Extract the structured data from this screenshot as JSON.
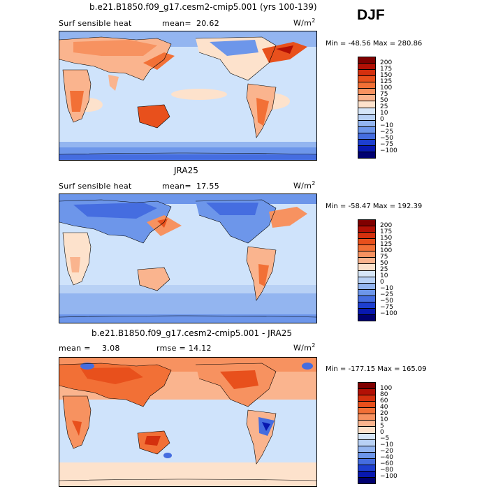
{
  "season": "DJF",
  "panels": [
    {
      "title": "b.e21.B1850.f09_g17.cesm2-cmip5.001 (yrs 100-139)",
      "left_label": "Surf sensible heat",
      "stat_label": "mean=",
      "stat_value": "20.62",
      "units_base": "W/m",
      "units_exp": "2",
      "minmax": "Min = -48.56 Max = 280.86",
      "colorbar": {
        "labels": [
          "200",
          "175",
          "150",
          "125",
          "100",
          "75",
          "50",
          "25",
          "10",
          "0",
          "−10",
          "−25",
          "−50",
          "−75",
          "−100"
        ],
        "colors": [
          "#7f0000",
          "#b21005",
          "#d4300e",
          "#e8501c",
          "#f27036",
          "#f79260",
          "#fab48e",
          "#fde2cc",
          "#d6e6f8",
          "#b8d1f5",
          "#93b5f0",
          "#6d96ea",
          "#456de0",
          "#1e3fd0",
          "#0818b0",
          "#000070"
        ]
      }
    },
    {
      "title": "JRA25",
      "left_label": "Surf sensible heat",
      "stat_label": "mean=",
      "stat_value": "17.55",
      "units_base": "W/m",
      "units_exp": "2",
      "minmax": "Min = -58.47 Max = 192.39",
      "colorbar": {
        "labels": [
          "200",
          "175",
          "150",
          "125",
          "100",
          "75",
          "50",
          "25",
          "10",
          "0",
          "−10",
          "−25",
          "−50",
          "−75",
          "−100"
        ],
        "colors": [
          "#7f0000",
          "#b21005",
          "#d4300e",
          "#e8501c",
          "#f27036",
          "#f79260",
          "#fab48e",
          "#fde2cc",
          "#d6e6f8",
          "#b8d1f5",
          "#93b5f0",
          "#6d96ea",
          "#456de0",
          "#1e3fd0",
          "#0818b0",
          "#000070"
        ]
      }
    },
    {
      "title": "b.e21.B1850.f09_g17.cesm2-cmip5.001 - JRA25",
      "left_label": "mean =",
      "stat_label": "3.08",
      "stat_value": "rmse =   14.12",
      "units_base": "W/m",
      "units_exp": "2",
      "minmax": "Min = -177.15 Max = 165.09",
      "colorbar": {
        "labels": [
          "100",
          "80",
          "60",
          "40",
          "20",
          "10",
          "5",
          "0",
          "−5",
          "−10",
          "−20",
          "−40",
          "−60",
          "−80",
          "−100"
        ],
        "colors": [
          "#7f0000",
          "#b21005",
          "#d4300e",
          "#e8501c",
          "#f27036",
          "#f79260",
          "#fab48e",
          "#fde2cc",
          "#d6e6f8",
          "#b8d1f5",
          "#93b5f0",
          "#6d96ea",
          "#456de0",
          "#1e3fd0",
          "#0818b0",
          "#000070"
        ]
      }
    }
  ]
}
